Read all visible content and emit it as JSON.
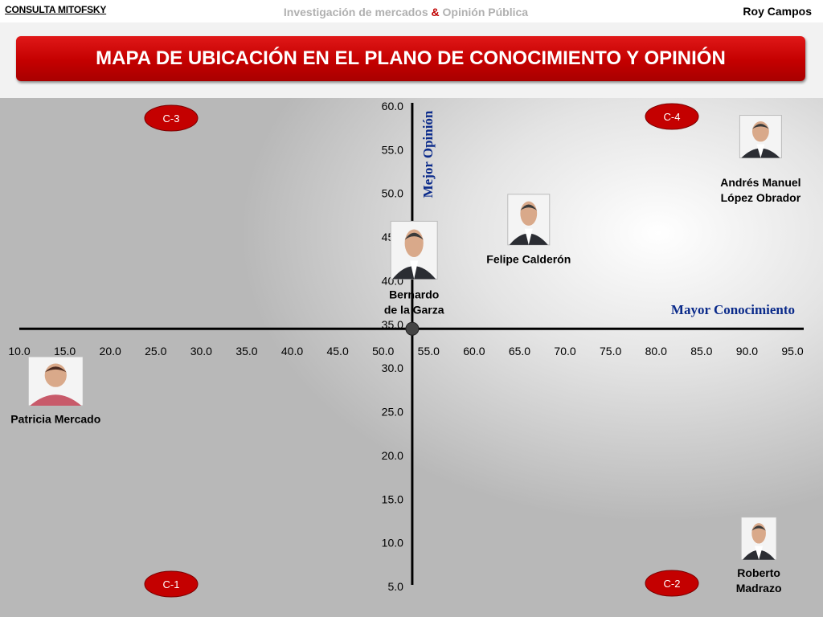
{
  "header": {
    "brand": "CONSULTA MITOFSKY",
    "tagline_part1": "Investigación de mercados",
    "tagline_amp": "&",
    "tagline_part2": "Opinión Pública",
    "author": "Roy Campos"
  },
  "title": "MAPA DE UBICACIÓN EN EL PLANO DE CONOCIMIENTO Y OPINIÓN",
  "colors": {
    "title_red": "#c40000",
    "axis_label_blue": "#0a2a8a",
    "badge_red": "#c40000"
  },
  "chart_data": {
    "type": "scatter",
    "xlabel": "Mayor Conocimiento",
    "ylabel": "Mejor Opinión",
    "xlim": [
      10,
      95
    ],
    "ylim": [
      5,
      60
    ],
    "x_ticks": [
      "10.0",
      "15.0",
      "20.0",
      "25.0",
      "30.0",
      "35.0",
      "40.0",
      "45.0",
      "50.0",
      "55.0",
      "60.0",
      "65.0",
      "70.0",
      "75.0",
      "80.0",
      "85.0",
      "90.0",
      "95.0"
    ],
    "y_ticks": [
      "5.0",
      "10.0",
      "15.0",
      "20.0",
      "25.0",
      "30.0",
      "35.0",
      "40.0",
      "45.0",
      "50.0",
      "55.0",
      "60.0"
    ],
    "origin": {
      "x": 53.2,
      "y": 34.5
    },
    "quadrants": [
      {
        "label": "C-3",
        "position": "top-left"
      },
      {
        "label": "C-4",
        "position": "top-right"
      },
      {
        "label": "C-1",
        "position": "bottom-left"
      },
      {
        "label": "C-2",
        "position": "bottom-right"
      }
    ],
    "points": [
      {
        "name": "Andrés Manuel López Obrador",
        "name_lines": [
          "Andrés Manuel",
          "López Obrador"
        ],
        "x": 91.5,
        "y": 56.5
      },
      {
        "name": "Felipe Calderón",
        "name_lines": [
          "Felipe Calderón"
        ],
        "x": 66.0,
        "y": 47.0
      },
      {
        "name": "Bernardo de la Garza",
        "name_lines": [
          "Bernardo",
          "de la Garza"
        ],
        "x": 53.4,
        "y": 43.5
      },
      {
        "name": "Patricia Mercado",
        "name_lines": [
          "Patricia Mercado"
        ],
        "x": 14.0,
        "y": 28.5
      },
      {
        "name": "Roberto Madrazo",
        "name_lines": [
          "Roberto",
          "Madrazo"
        ],
        "x": 91.3,
        "y": 10.5
      }
    ]
  }
}
